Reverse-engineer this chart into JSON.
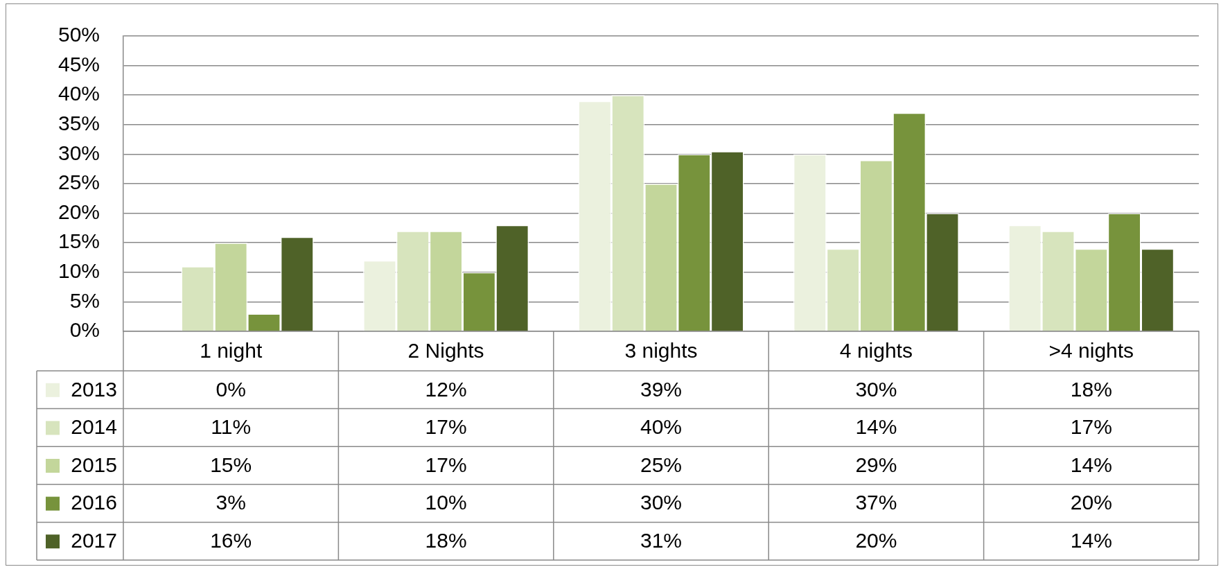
{
  "chart_data": {
    "type": "bar",
    "categories": [
      "1 night",
      "2 Nights",
      "3 nights",
      "4 nights",
      ">4 nights"
    ],
    "series": [
      {
        "name": "2013",
        "color": "#ebf1de",
        "values": [
          0,
          12,
          39,
          30,
          18
        ],
        "value_labels": [
          "0%",
          "12%",
          "39%",
          "30%",
          "18%"
        ]
      },
      {
        "name": "2014",
        "color": "#d7e4bd",
        "values": [
          11,
          17,
          40,
          14,
          17
        ],
        "value_labels": [
          "11%",
          "17%",
          "40%",
          "14%",
          "17%"
        ]
      },
      {
        "name": "2015",
        "color": "#c3d69b",
        "values": [
          15,
          17,
          25,
          29,
          14
        ],
        "value_labels": [
          "15%",
          "17%",
          "25%",
          "29%",
          "14%"
        ]
      },
      {
        "name": "2016",
        "color": "#77933c",
        "values": [
          3,
          10,
          30,
          37,
          20
        ],
        "value_labels": [
          "3%",
          "10%",
          "30%",
          "37%",
          "20%"
        ]
      },
      {
        "name": "2017",
        "color": "#4f6228",
        "values": [
          16,
          18,
          30.5,
          20,
          14
        ],
        "value_labels": [
          "16%",
          "18%",
          "31%",
          "20%",
          "14%"
        ]
      }
    ],
    "ylim": [
      0,
      50
    ],
    "yticks": [
      {
        "value": 0,
        "label": "0%"
      },
      {
        "value": 5,
        "label": "5%"
      },
      {
        "value": 10,
        "label": "10%"
      },
      {
        "value": 15,
        "label": "15%"
      },
      {
        "value": 20,
        "label": "20%"
      },
      {
        "value": 25,
        "label": "25%"
      },
      {
        "value": 30,
        "label": "30%"
      },
      {
        "value": 35,
        "label": "35%"
      },
      {
        "value": 40,
        "label": "40%"
      },
      {
        "value": 45,
        "label": "45%"
      },
      {
        "value": 50,
        "label": "50%"
      }
    ],
    "grid": "y",
    "legend": "bottom left"
  }
}
